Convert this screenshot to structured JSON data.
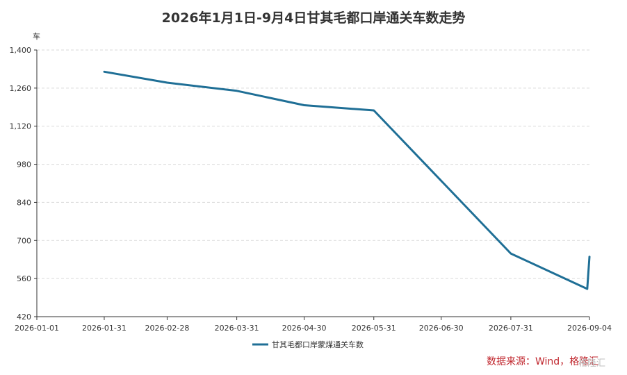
{
  "chart_data": {
    "type": "line",
    "title": "2026年1月1日-9月4日甘其毛都口岸通关车数走势",
    "ylabel": "车",
    "xlabel": "",
    "ylim": [
      420,
      1400
    ],
    "yticks": [
      "420",
      "560",
      "700",
      "840",
      "980",
      "1,120",
      "1,260",
      "1,400"
    ],
    "xticks": [
      "2026-01-01",
      "2026-01-31",
      "2026-02-28",
      "2026-03-31",
      "2026-04-30",
      "2026-05-31",
      "2026-06-30",
      "2026-07-31",
      "2026-09-04"
    ],
    "xlim": [
      "2026-01-01",
      "2026-09-04"
    ],
    "grid": true,
    "legend_position": "bottom-center",
    "series": [
      {
        "name": "甘其毛都口岸蒙煤通关车数",
        "color": "#1f6f96",
        "points": [
          {
            "x": "2026-01-31",
            "y": 1320
          },
          {
            "x": "2026-02-28",
            "y": 1280
          },
          {
            "x": "2026-03-31",
            "y": 1250
          },
          {
            "x": "2026-04-30",
            "y": 1197
          },
          {
            "x": "2026-05-31",
            "y": 1178
          },
          {
            "x": "2026-07-31",
            "y": 652
          },
          {
            "x": "2026-09-03",
            "y": 522
          },
          {
            "x": "2026-09-04",
            "y": 640
          }
        ]
      }
    ]
  },
  "source": "数据来源：Wind，格隆汇",
  "watermark": "格隆汇"
}
